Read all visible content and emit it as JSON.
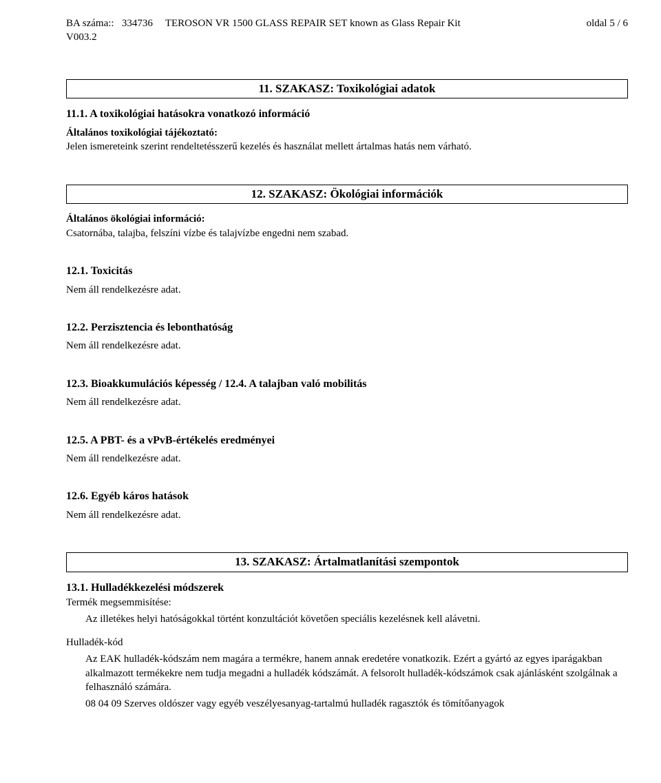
{
  "header": {
    "ba_number_label": "BA száma::",
    "ba_number_value": "334736",
    "version": "V003.2",
    "product_name": "TEROSON VR 1500 GLASS REPAIR SET known as Glass Repair Kit",
    "page_label": "oldal 5 / 6"
  },
  "section11": {
    "title": "11. SZAKASZ: Toxikológiai adatok",
    "sub1_title": "11.1. A toxikológiai hatásokra vonatkozó információ",
    "general_label": "Általános toxikológiai tájékoztató:",
    "general_text": "Jelen ismereteink szerint rendeltetésszerű kezelés és használat mellett ártalmas hatás nem várható."
  },
  "section12": {
    "title": "12. SZAKASZ: Ökológiai információk",
    "general_label": "Általános ökológiai információ:",
    "general_text": "Csatornába, talajba, felszíni vízbe és talajvízbe engedni nem szabad.",
    "sub1_title": "12.1. Toxicitás",
    "sub1_text": "Nem áll rendelkezésre adat.",
    "sub2_title": "12.2. Perzisztencia és lebonthatóság",
    "sub2_text": "Nem áll rendelkezésre adat.",
    "sub3_title": "12.3. Bioakkumulációs képesség / 12.4. A talajban való mobilitás",
    "sub3_text": "Nem áll rendelkezésre adat.",
    "sub5_title": "12.5. A PBT- és a vPvB-értékelés eredményei",
    "sub5_text": "Nem áll rendelkezésre adat.",
    "sub6_title": "12.6. Egyéb káros hatások",
    "sub6_text": "Nem áll rendelkezésre adat."
  },
  "section13": {
    "title": "13. SZAKASZ: Ártalmatlanítási szempontok",
    "sub1_title": "13.1. Hulladékkezelési módszerek",
    "disposal_label": "Termék megsemmisítése:",
    "disposal_text": "Az illetékes helyi hatóságokkal történt konzultációt követően speciális kezelésnek kell alávetni.",
    "waste_code_label": "Hulladék-kód",
    "waste_code_text": "Az EAK hulladék-kódszám nem magára a termékre, hanem annak eredetére vonatkozik. Ezért a gyártó az egyes iparágakban alkalmazott termékekre nem tudja megadni a hulladék kódszámát. A felsorolt hulladék-kódszámok csak ajánlásként szolgálnak a felhasználó számára.",
    "waste_code_entry": "08 04 09 Szerves oldószer vagy egyéb veszélyesanyag-tartalmú hulladék ragasztók és tömítőanyagok"
  }
}
